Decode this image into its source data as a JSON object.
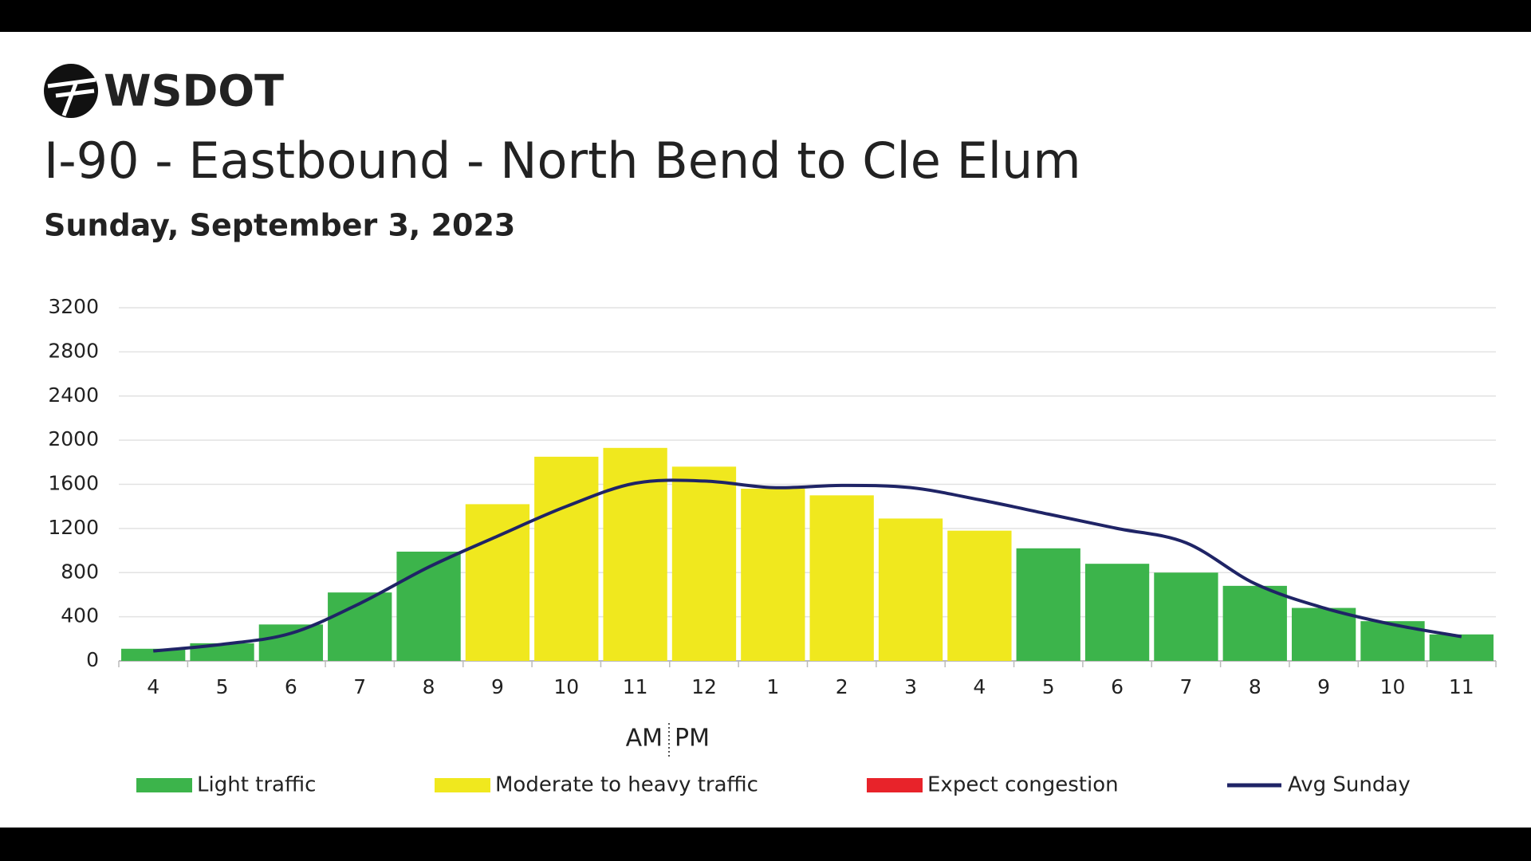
{
  "header": {
    "logo": "WSDOT"
  },
  "chart_data": {
    "type": "bar",
    "title": "I-90 - Eastbound - North Bend to Cle Elum",
    "subtitle": "Sunday, September 3, 2023",
    "categories": [
      "4",
      "5",
      "6",
      "7",
      "8",
      "9",
      "10",
      "11",
      "12",
      "1",
      "2",
      "3",
      "4",
      "5",
      "6",
      "7",
      "8",
      "9",
      "10",
      "11"
    ],
    "x_annotations": [
      "AM",
      "PM"
    ],
    "series": [
      {
        "name": "Light traffic",
        "color": "#3cb44b",
        "values": [
          110,
          160,
          330,
          620,
          990,
          null,
          null,
          null,
          null,
          null,
          null,
          null,
          null,
          1020,
          880,
          800,
          680,
          480,
          360,
          240
        ]
      },
      {
        "name": "Moderate to heavy traffic",
        "color": "#f0e81e",
        "values": [
          null,
          null,
          null,
          null,
          null,
          1420,
          1850,
          1930,
          1760,
          1560,
          1500,
          1290,
          1180,
          null,
          null,
          null,
          null,
          null,
          null,
          null
        ]
      },
      {
        "name": "Expect congestion",
        "color": "#e8232a",
        "values": [
          null,
          null,
          null,
          null,
          null,
          null,
          null,
          null,
          null,
          null,
          null,
          null,
          null,
          null,
          null,
          null,
          null,
          null,
          null,
          null
        ]
      },
      {
        "name": "Avg Sunday",
        "type": "line",
        "color": "#1f2466",
        "values": [
          90,
          150,
          250,
          520,
          850,
          1130,
          1400,
          1610,
          1630,
          1570,
          1590,
          1570,
          1460,
          1330,
          1200,
          1070,
          700,
          480,
          330,
          220
        ]
      }
    ],
    "ylim": [
      0,
      3200
    ],
    "yticks": [
      0,
      400,
      800,
      1200,
      1600,
      2000,
      2400,
      2800,
      3200
    ],
    "grid": true
  }
}
